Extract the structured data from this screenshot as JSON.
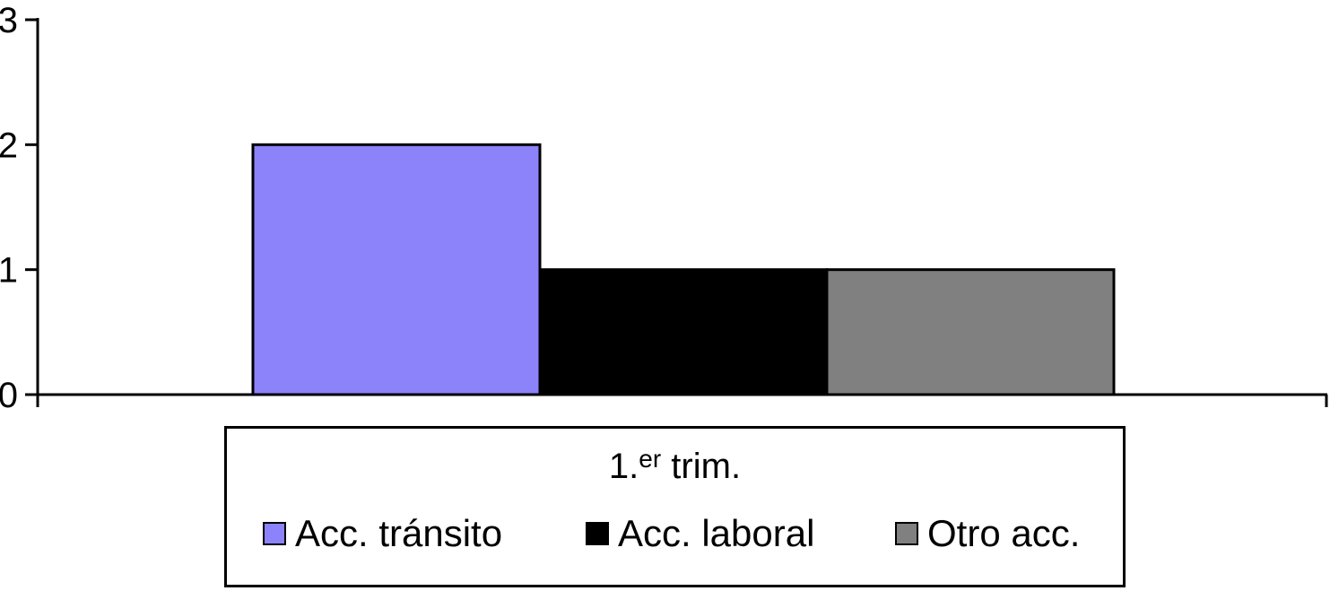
{
  "chart_data": {
    "type": "bar",
    "categories": [
      "1.er trim."
    ],
    "category_label": {
      "main": "1.",
      "sup": "er",
      "rest": " trim."
    },
    "series": [
      {
        "name": "Acc. tránsito",
        "values": [
          2
        ],
        "color": "#8c82fa"
      },
      {
        "name": "Acc. laboral",
        "values": [
          1
        ],
        "color": "#000000"
      },
      {
        "name": "Otro acc.",
        "values": [
          1
        ],
        "color": "#808080"
      }
    ],
    "ylim": [
      0,
      3
    ],
    "yticks": [
      "0",
      "1",
      "2",
      "3"
    ],
    "grid": false,
    "legend": "bottom",
    "title": "",
    "xlabel": "",
    "ylabel": ""
  }
}
